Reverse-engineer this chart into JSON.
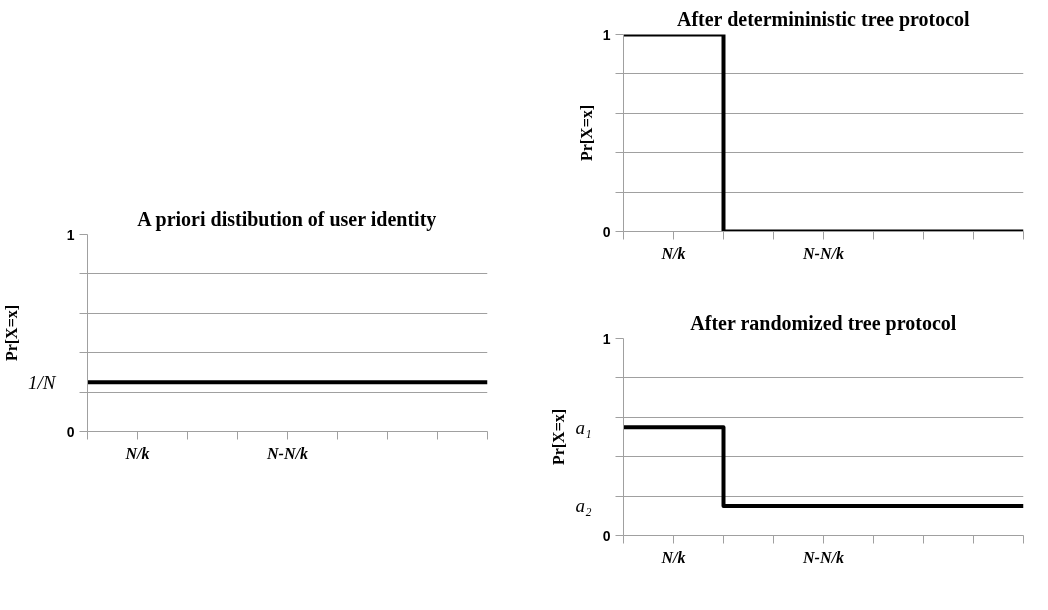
{
  "chart_data": [
    {
      "type": "step",
      "title": "A priori distibution of user identity",
      "ylabel": "Pr[X=x]",
      "ylim": [
        0,
        1
      ],
      "categories": [
        null,
        "N/k",
        null,
        null,
        "N-N/k",
        null,
        null,
        null,
        null
      ],
      "yticks": [
        0,
        {
          "value": 0.2,
          "label": null
        },
        {
          "value": 0.4,
          "label": null
        },
        {
          "value": 0.6,
          "label": null
        },
        {
          "value": 0.8,
          "label": null
        },
        1
      ],
      "annotations": [
        "1/N"
      ],
      "grid": "y",
      "line_style": "solid",
      "series": [
        {
          "color": "#000000",
          "values": [
            0.25,
            0.25,
            0.25,
            0.25,
            0.25,
            0.25,
            0.25,
            0.25,
            0.25
          ]
        }
      ]
    },
    {
      "type": "step",
      "title": "After determininistic tree protocol",
      "ylabel": "Pr[X=x]",
      "ylim": [
        0,
        1
      ],
      "categories": [
        null,
        "N/k",
        null,
        null,
        "N-N/k",
        null,
        null,
        null,
        null
      ],
      "yticks": [
        0,
        {
          "value": 0.2,
          "label": null
        },
        {
          "value": 0.4,
          "label": null
        },
        {
          "value": 0.6,
          "label": null
        },
        {
          "value": 0.8,
          "label": null
        },
        1
      ],
      "grid": "y",
      "line_style": "solid",
      "series": [
        {
          "color": "#000000",
          "values": [
            1,
            1,
            0,
            0,
            0,
            0,
            0,
            0,
            0
          ]
        }
      ]
    },
    {
      "type": "step",
      "title": "After randomized tree protocol",
      "ylabel": "Pr[X=x]",
      "ylim": [
        0,
        1
      ],
      "categories": [
        null,
        "N/k",
        null,
        null,
        "N-N/k",
        null,
        null,
        null,
        null
      ],
      "yticks": [
        0,
        {
          "value": 0.2,
          "label": null
        },
        {
          "value": 0.4,
          "label": null
        },
        {
          "value": 0.6,
          "label": null
        },
        {
          "value": 0.8,
          "label": null
        },
        1
      ],
      "annotations": [
        "a₁",
        "a₂"
      ],
      "grid": "y",
      "line_style": "solid",
      "series": [
        {
          "color": "#000000",
          "values": [
            0.55,
            0.55,
            0.15,
            0.15,
            0.15,
            0.15,
            0.15,
            0.15,
            0.15
          ]
        }
      ]
    }
  ]
}
